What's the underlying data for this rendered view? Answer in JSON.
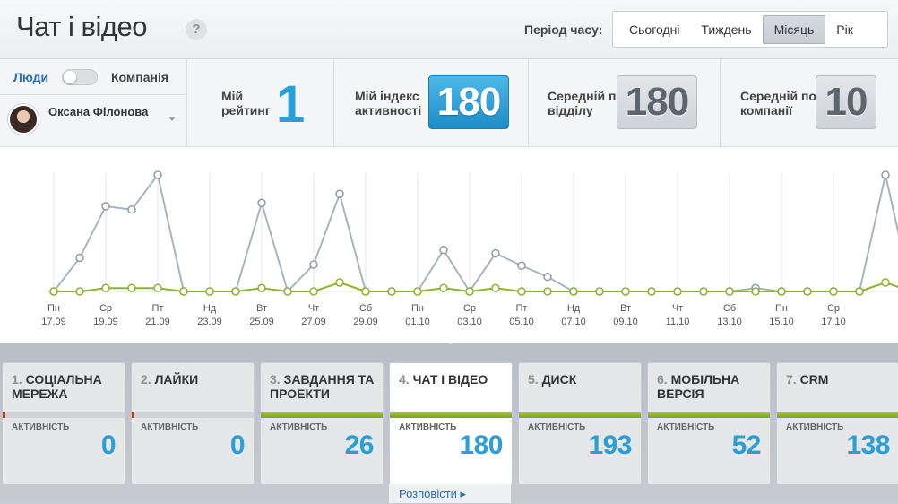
{
  "header": {
    "title": "Чат і відео",
    "help": "?",
    "period_label": "Період часу:",
    "period_options": [
      "Сьогодні",
      "Тиждень",
      "Місяць",
      "Рік"
    ],
    "period_selected": "Місяць"
  },
  "people": {
    "toggle_left": "Люди",
    "toggle_right": "Компанія",
    "user_name": "Оксана Філонова"
  },
  "stats": {
    "rating_label": "Мій рейтинг",
    "rating_value": "1",
    "index_label": "Мій індекс активності",
    "index_value": "180",
    "dept_label": "Середній по відділу",
    "dept_value": "180",
    "company_label": "Середній по компанії",
    "company_value": "10"
  },
  "chart_data": {
    "type": "line",
    "x_labels": [
      [
        "Пн",
        "17.09"
      ],
      [
        "Ср",
        "19.09"
      ],
      [
        "Пт",
        "21.09"
      ],
      [
        "Нд",
        "23.09"
      ],
      [
        "Вт",
        "25.09"
      ],
      [
        "Чт",
        "27.09"
      ],
      [
        "Сб",
        "29.09"
      ],
      [
        "Пн",
        "01.10"
      ],
      [
        "Ср",
        "03.10"
      ],
      [
        "Пт",
        "05.10"
      ],
      [
        "Нд",
        "07.10"
      ],
      [
        "Вт",
        "09.10"
      ],
      [
        "Чт",
        "11.10"
      ],
      [
        "Сб",
        "13.10"
      ],
      [
        "Пн",
        "15.10"
      ],
      [
        "Ср",
        "17.10"
      ]
    ],
    "series": [
      {
        "color": "#a8b4bf",
        "values": [
          0,
          30,
          76,
          73,
          104,
          0,
          0,
          0,
          79,
          0,
          24,
          87,
          0,
          0,
          0,
          37,
          0,
          34,
          23,
          13,
          0,
          0,
          0,
          0,
          0,
          0,
          0,
          3,
          0,
          0,
          0,
          0,
          104,
          0
        ]
      },
      {
        "color": "#8db52b",
        "values": [
          0,
          0,
          3,
          3,
          3,
          0,
          0,
          0,
          3,
          0,
          0,
          8,
          0,
          0,
          0,
          3,
          0,
          3,
          0,
          0,
          0,
          0,
          0,
          0,
          0,
          0,
          0,
          0,
          0,
          0,
          0,
          0,
          8,
          0
        ]
      }
    ],
    "ylim": [
      0,
      120
    ],
    "grid": true
  },
  "tabs": [
    {
      "num": "1.",
      "name": "Соціальна мережа",
      "activity_label": "Активність",
      "value": "0",
      "level": 0
    },
    {
      "num": "2.",
      "name": "Лайки",
      "activity_label": "Активність",
      "value": "0",
      "level": 0
    },
    {
      "num": "3.",
      "name": "Завдання та проекти",
      "activity_label": "Активність",
      "value": "26",
      "level": 1
    },
    {
      "num": "4.",
      "name": "Чат і відео",
      "activity_label": "Активність",
      "value": "180",
      "level": 1,
      "active": true
    },
    {
      "num": "5.",
      "name": "Диск",
      "activity_label": "Активність",
      "value": "193",
      "level": 1
    },
    {
      "num": "6.",
      "name": "Мобільна версія",
      "activity_label": "Активність",
      "value": "52",
      "level": 1
    },
    {
      "num": "7.",
      "name": "CRM",
      "activity_label": "Активність",
      "value": "138",
      "level": 1
    }
  ],
  "more_link": "Розповісти"
}
